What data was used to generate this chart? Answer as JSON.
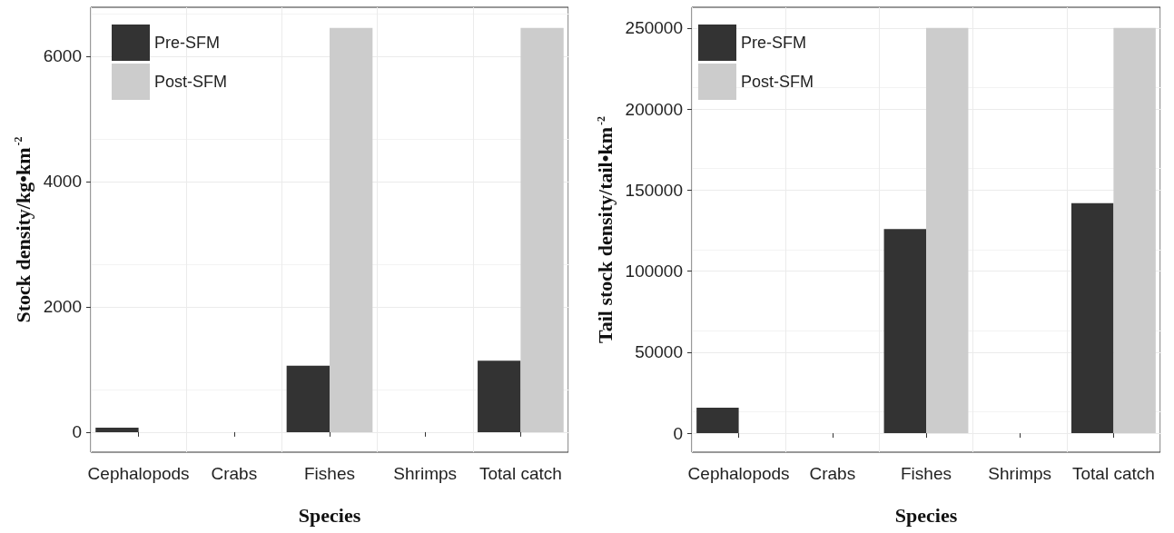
{
  "chart_data": [
    {
      "type": "bar",
      "xlabel": "Species",
      "ylabel": "Stock density/kg•km$^{-2}$",
      "categories": [
        "Cephalopods",
        "Crabs",
        "Fishes",
        "Shrimps",
        "Total catch"
      ],
      "series": [
        {
          "name": "Pre-SFM",
          "color": "#333333",
          "values": [
            70,
            0,
            1060,
            0,
            1140
          ]
        },
        {
          "name": "Post-SFM",
          "color": "#cccccc",
          "values": [
            0,
            0,
            6450,
            0,
            6450
          ]
        }
      ],
      "ylim": [
        -320,
        6780
      ],
      "yticks": [
        0,
        2000,
        4000,
        6000
      ],
      "grid": true,
      "legend": "top left"
    },
    {
      "type": "bar",
      "xlabel": "Species",
      "ylabel": "Tail stock density/tail•km$^{-2}$",
      "categories": [
        "Cephalopods",
        "Crabs",
        "Fishes",
        "Shrimps",
        "Total catch"
      ],
      "series": [
        {
          "name": "Pre-SFM",
          "color": "#333333",
          "values": [
            15800,
            0,
            126000,
            0,
            142000
          ]
        },
        {
          "name": "Post-SFM",
          "color": "#cccccc",
          "values": [
            0,
            0,
            250000,
            0,
            250000
          ]
        }
      ],
      "ylim": [
        -11700,
        262800
      ],
      "yticks": [
        0,
        50000,
        100000,
        150000,
        200000,
        250000
      ],
      "grid": true,
      "legend": "top left"
    }
  ]
}
